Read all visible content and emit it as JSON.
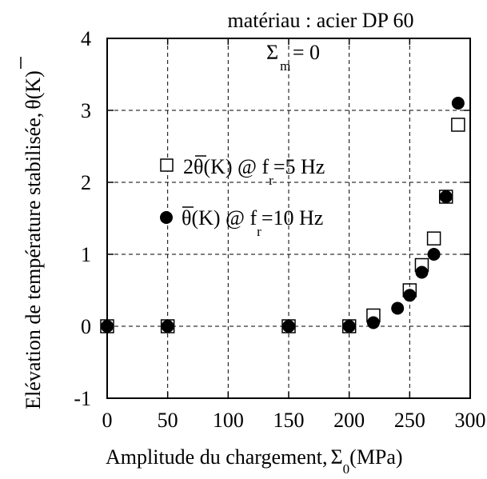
{
  "chart_data": {
    "type": "scatter",
    "title": "matériau : acier DP 60",
    "annotation": {
      "text": "Σ",
      "sub": "m",
      "rest": " = 0"
    },
    "xlabel": {
      "text": "Amplitude du chargement,",
      "sym": "Σ",
      "sub": "0",
      "rest": "(MPa)"
    },
    "ylabel": {
      "text": "Elévation de température stabilisée,",
      "sym": "θ",
      "rest": "(K)"
    },
    "xlim": [
      0,
      300
    ],
    "ylim": [
      -1,
      4
    ],
    "xticks": [
      0,
      50,
      100,
      150,
      200,
      250,
      300
    ],
    "yticks": [
      -1,
      0,
      1,
      2,
      3,
      4
    ],
    "grid": true,
    "legend_position": "center-left",
    "series": [
      {
        "label": {
          "pre": "2",
          "sym": "θ",
          "mid": "(K) @ f",
          "sub": "r",
          "post": "=5 Hz"
        },
        "marker": "open-square",
        "x": [
          0,
          50,
          150,
          200,
          220,
          250,
          260,
          270,
          280,
          290
        ],
        "y": [
          0,
          0,
          0,
          0,
          0.15,
          0.5,
          0.85,
          1.22,
          1.8,
          2.8
        ]
      },
      {
        "label": {
          "pre": "",
          "sym": "θ",
          "mid": "(K) @ f",
          "sub": "r",
          "post": "=10 Hz"
        },
        "marker": "filled-circle",
        "x": [
          0,
          50,
          150,
          200,
          220,
          240,
          250,
          260,
          270,
          280,
          290
        ],
        "y": [
          0,
          0,
          0,
          0,
          0.05,
          0.25,
          0.43,
          0.75,
          1.0,
          1.8,
          3.1
        ]
      }
    ]
  }
}
